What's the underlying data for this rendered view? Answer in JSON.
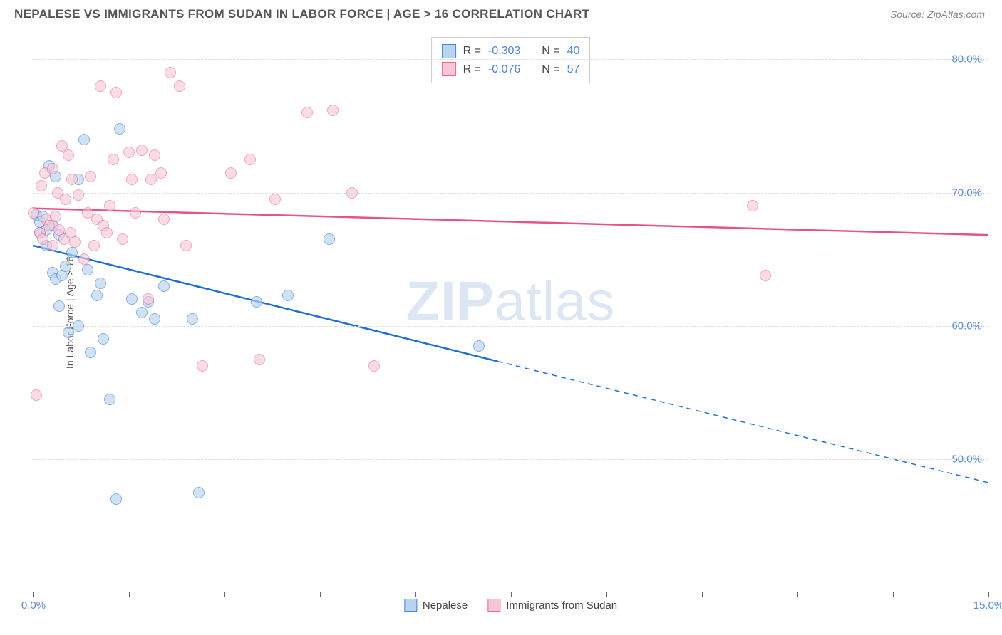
{
  "header": {
    "title": "NEPALESE VS IMMIGRANTS FROM SUDAN IN LABOR FORCE | AGE > 16 CORRELATION CHART",
    "source": "Source: ZipAtlas.com"
  },
  "watermark": {
    "bold": "ZIP",
    "rest": "atlas"
  },
  "chart": {
    "type": "scatter",
    "y_axis_title": "In Labor Force | Age > 16",
    "xlim": [
      0,
      15
    ],
    "ylim": [
      40,
      82
    ],
    "x_ticks": [
      0,
      1.5,
      3.0,
      4.5,
      6.0,
      7.5,
      9.0,
      10.5,
      12.0,
      13.5,
      15.0
    ],
    "x_tick_labels": {
      "0": "0.0%",
      "15": "15.0%"
    },
    "y_gridlines": [
      50,
      60,
      70,
      80
    ],
    "y_tick_labels": {
      "50": "50.0%",
      "60": "60.0%",
      "70": "70.0%",
      "80": "80.0%"
    },
    "axis_label_color": "#5b8bd4",
    "background_color": "#ffffff",
    "grid_color": "#dddddd",
    "marker_radius": 8,
    "marker_border_width": 1.5,
    "series": [
      {
        "name": "Nepalese",
        "fill": "#b9d3f0",
        "stroke": "#4a84d4",
        "fill_opacity": 0.65,
        "line_color": "#1d6fd4",
        "line_width": 2.5,
        "R": "-0.303",
        "N": "40",
        "trend": {
          "x1": 0,
          "y1": 66.0,
          "x2_solid": 7.3,
          "y2_solid": 57.3,
          "x2_dash": 15,
          "y2_dash": 48.2
        },
        "points": [
          [
            0.05,
            68.3
          ],
          [
            0.1,
            67.0
          ],
          [
            0.1,
            67.8
          ],
          [
            0.15,
            68.2
          ],
          [
            0.2,
            66.0
          ],
          [
            0.2,
            67.2
          ],
          [
            0.25,
            72.0
          ],
          [
            0.3,
            64.0
          ],
          [
            0.3,
            67.5
          ],
          [
            0.35,
            71.2
          ],
          [
            0.35,
            63.5
          ],
          [
            0.4,
            66.8
          ],
          [
            0.4,
            61.5
          ],
          [
            0.45,
            63.8
          ],
          [
            0.5,
            64.5
          ],
          [
            0.55,
            59.5
          ],
          [
            0.6,
            65.5
          ],
          [
            0.7,
            60.0
          ],
          [
            0.7,
            71.0
          ],
          [
            0.8,
            74.0
          ],
          [
            0.85,
            64.2
          ],
          [
            0.9,
            58.0
          ],
          [
            1.0,
            62.3
          ],
          [
            1.05,
            63.2
          ],
          [
            1.1,
            59.0
          ],
          [
            1.2,
            54.5
          ],
          [
            1.3,
            47.0
          ],
          [
            1.35,
            74.8
          ],
          [
            1.55,
            62.0
          ],
          [
            1.7,
            61.0
          ],
          [
            1.8,
            61.8
          ],
          [
            1.9,
            60.5
          ],
          [
            2.05,
            63.0
          ],
          [
            2.5,
            60.5
          ],
          [
            2.6,
            47.5
          ],
          [
            3.5,
            61.8
          ],
          [
            4.0,
            62.3
          ],
          [
            4.65,
            66.5
          ],
          [
            7.0,
            58.5
          ]
        ]
      },
      {
        "name": "Immigrants from Sudan",
        "fill": "#f6c6d6",
        "stroke": "#e86a94",
        "fill_opacity": 0.6,
        "line_color": "#e9537f",
        "line_width": 2.5,
        "R": "-0.076",
        "N": "57",
        "trend": {
          "x1": 0,
          "y1": 68.8,
          "x2_solid": 15,
          "y2_solid": 66.8,
          "x2_dash": 15,
          "y2_dash": 66.8
        },
        "points": [
          [
            0.0,
            68.5
          ],
          [
            0.05,
            54.8
          ],
          [
            0.1,
            67.0
          ],
          [
            0.12,
            70.5
          ],
          [
            0.15,
            66.5
          ],
          [
            0.18,
            71.5
          ],
          [
            0.2,
            68.0
          ],
          [
            0.25,
            67.5
          ],
          [
            0.3,
            71.8
          ],
          [
            0.3,
            66.0
          ],
          [
            0.35,
            68.2
          ],
          [
            0.38,
            70.0
          ],
          [
            0.4,
            67.2
          ],
          [
            0.45,
            73.5
          ],
          [
            0.48,
            66.5
          ],
          [
            0.5,
            69.5
          ],
          [
            0.55,
            72.8
          ],
          [
            0.58,
            67.0
          ],
          [
            0.6,
            71.0
          ],
          [
            0.65,
            66.3
          ],
          [
            0.7,
            69.8
          ],
          [
            0.8,
            65.0
          ],
          [
            0.85,
            68.5
          ],
          [
            0.9,
            71.2
          ],
          [
            0.95,
            66.0
          ],
          [
            1.0,
            68.0
          ],
          [
            1.05,
            78.0
          ],
          [
            1.1,
            67.5
          ],
          [
            1.15,
            67.0
          ],
          [
            1.2,
            69.0
          ],
          [
            1.25,
            72.5
          ],
          [
            1.3,
            77.5
          ],
          [
            1.4,
            66.5
          ],
          [
            1.5,
            73.0
          ],
          [
            1.55,
            71.0
          ],
          [
            1.6,
            68.5
          ],
          [
            1.7,
            73.2
          ],
          [
            1.8,
            62.0
          ],
          [
            1.85,
            71.0
          ],
          [
            1.9,
            72.8
          ],
          [
            2.0,
            71.5
          ],
          [
            2.05,
            68.0
          ],
          [
            2.15,
            79.0
          ],
          [
            2.3,
            78.0
          ],
          [
            2.4,
            66.0
          ],
          [
            2.65,
            57.0
          ],
          [
            3.1,
            71.5
          ],
          [
            3.4,
            72.5
          ],
          [
            3.55,
            57.5
          ],
          [
            3.8,
            69.5
          ],
          [
            4.3,
            76.0
          ],
          [
            4.7,
            76.2
          ],
          [
            5.0,
            70.0
          ],
          [
            5.35,
            57.0
          ],
          [
            11.3,
            69.0
          ],
          [
            11.5,
            63.8
          ]
        ]
      }
    ]
  },
  "stats_legend": {
    "label_R": "R =",
    "label_N": "N =",
    "value_color": "#4a84d4"
  },
  "bottom_legend": {
    "items": [
      "Nepalese",
      "Immigrants from Sudan"
    ]
  }
}
